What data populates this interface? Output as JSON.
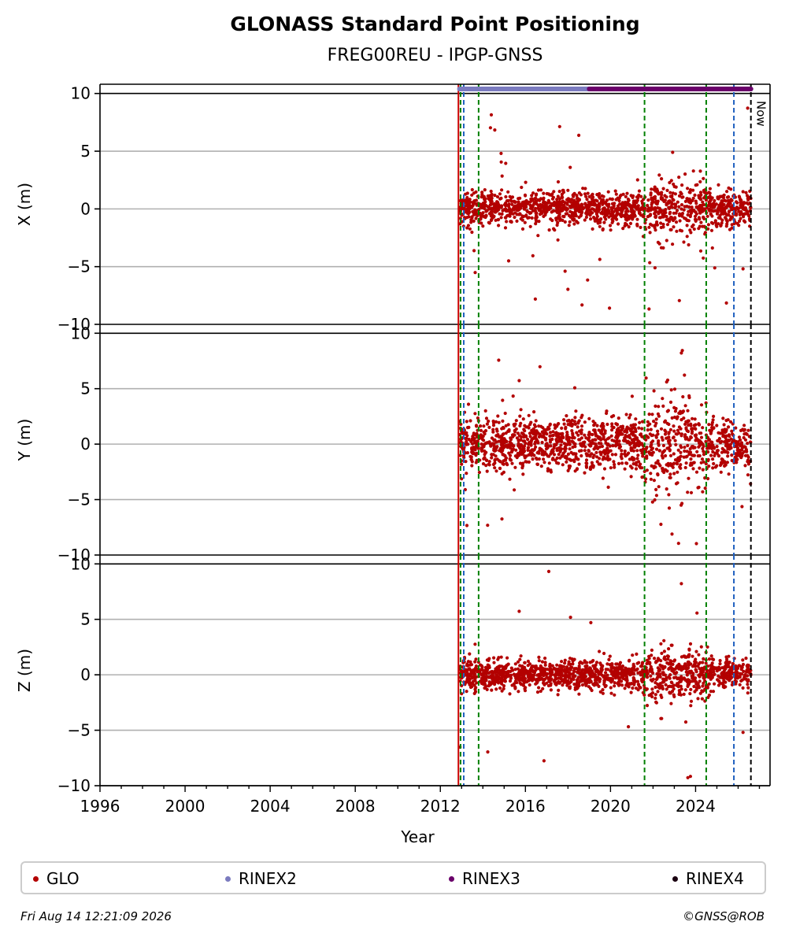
{
  "title": "GLONASS Standard Point Positioning",
  "subtitle": "FREG00REU - IPGP-GNSS",
  "footer": {
    "date": "Fri Aug 14 12:21:09 2026",
    "credit": "©GNSS@ROB"
  },
  "now_label": "Now",
  "chart_data": {
    "type": "scatter",
    "xlabel": "Year",
    "xlim": [
      1996,
      2027.5
    ],
    "x_ticks": [
      "1996",
      "2000",
      "2004",
      "2008",
      "2012",
      "2016",
      "2020",
      "2024"
    ],
    "grid": "horizontal",
    "legend_placement": "below",
    "panels": [
      {
        "ylabel": "X (m)",
        "ylim": [
          -10,
          10
        ],
        "y_ticks": [
          "−10",
          "−5",
          "0",
          "5",
          "10"
        ],
        "spread": 1.3,
        "outliers": 9.5
      },
      {
        "ylabel": "Y (m)",
        "ylim": [
          -10,
          10
        ],
        "y_ticks": [
          "−10",
          "−5",
          "0",
          "5",
          "10"
        ],
        "spread": 2.2,
        "outliers": 9.5
      },
      {
        "ylabel": "Z (m)",
        "ylim": [
          -10,
          10
        ],
        "y_ticks": [
          "−10",
          "−5",
          "0",
          "5",
          "10"
        ],
        "spread": 1.2,
        "outliers": 9.5
      }
    ],
    "data_start": 2012.9,
    "data_end": 2026.6,
    "vertical_lines": [
      {
        "x": 2012.85,
        "color": "#cc0000",
        "style": "solid"
      },
      {
        "x": 2012.95,
        "color": "#008000",
        "style": "dashed"
      },
      {
        "x": 2013.1,
        "color": "#1f5fbf",
        "style": "dashed"
      },
      {
        "x": 2013.8,
        "color": "#008000",
        "style": "dashed"
      },
      {
        "x": 2021.6,
        "color": "#008000",
        "style": "dashed"
      },
      {
        "x": 2024.5,
        "color": "#008000",
        "style": "dashed"
      },
      {
        "x": 2025.8,
        "color": "#1f5fbf",
        "style": "dashed"
      },
      {
        "x": 2026.6,
        "color": "#000000",
        "style": "dashed"
      }
    ],
    "rinex_bars": [
      {
        "name": "RINEX2",
        "start": 2012.9,
        "end": 2026.6,
        "color": "#7b7bbf"
      },
      {
        "name": "RINEX3",
        "start": 2019.0,
        "end": 2026.6,
        "color": "#6a006a"
      }
    ],
    "series": [
      {
        "name": "GLO",
        "color": "#b30000"
      },
      {
        "name": "RINEX2",
        "color": "#7b7bbf"
      },
      {
        "name": "RINEX3",
        "color": "#6a006a"
      },
      {
        "name": "RINEX4",
        "color": "#1a0010"
      }
    ]
  }
}
